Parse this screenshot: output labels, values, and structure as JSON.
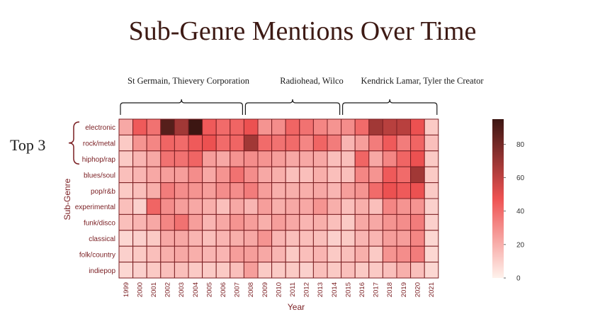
{
  "title": "Sub-Genre Mentions Over Time",
  "annotations": {
    "bracket1": "St Germain, Thievery Corporation",
    "bracket2": "Radiohead, Wilco",
    "bracket3": "Kendrick Lamar, Tyler the Creator",
    "top3": "Top 3"
  },
  "colors": {
    "low": "#fff2ec",
    "mid": "#ee5252",
    "high": "#3c1612",
    "grid": "#7a1e22",
    "text": "#7a1e22"
  },
  "chart_data": {
    "type": "heatmap",
    "title": "Sub-Genre Mentions Over Time",
    "xlabel": "Year",
    "ylabel": "Sub-Genre",
    "x": [
      "1999",
      "2000",
      "2001",
      "2002",
      "2003",
      "2004",
      "2005",
      "2006",
      "2007",
      "2008",
      "2009",
      "2010",
      "2011",
      "2012",
      "2013",
      "2014",
      "2015",
      "2016",
      "2017",
      "2018",
      "2019",
      "2020",
      "2021"
    ],
    "y": [
      "electronic",
      "rock/metal",
      "hiphop/rap",
      "blues/soul",
      "pop/r&b",
      "experimental",
      "funk/disco",
      "classical",
      "folk/country",
      "indiepop"
    ],
    "values": [
      [
        22,
        45,
        38,
        88,
        68,
        95,
        45,
        40,
        42,
        48,
        28,
        30,
        42,
        38,
        32,
        28,
        30,
        40,
        68,
        62,
        62,
        48,
        12
      ],
      [
        12,
        28,
        32,
        42,
        40,
        45,
        48,
        40,
        42,
        68,
        40,
        38,
        40,
        32,
        42,
        35,
        18,
        25,
        35,
        45,
        35,
        42,
        15
      ],
      [
        12,
        18,
        22,
        38,
        38,
        42,
        25,
        22,
        28,
        30,
        28,
        25,
        22,
        22,
        22,
        15,
        15,
        42,
        22,
        32,
        42,
        48,
        12
      ],
      [
        15,
        18,
        22,
        25,
        25,
        30,
        22,
        28,
        38,
        30,
        22,
        20,
        15,
        15,
        20,
        15,
        15,
        32,
        28,
        45,
        40,
        68,
        12
      ],
      [
        12,
        15,
        20,
        35,
        30,
        28,
        25,
        30,
        30,
        35,
        25,
        20,
        20,
        20,
        22,
        18,
        25,
        28,
        40,
        48,
        45,
        48,
        12
      ],
      [
        15,
        10,
        42,
        30,
        25,
        22,
        20,
        15,
        22,
        18,
        25,
        20,
        22,
        22,
        28,
        20,
        15,
        20,
        15,
        32,
        28,
        28,
        10
      ],
      [
        15,
        18,
        22,
        32,
        38,
        25,
        18,
        22,
        28,
        25,
        20,
        25,
        22,
        18,
        20,
        15,
        12,
        22,
        22,
        28,
        30,
        35,
        10
      ],
      [
        8,
        10,
        12,
        22,
        22,
        18,
        15,
        18,
        20,
        22,
        28,
        18,
        15,
        15,
        15,
        10,
        12,
        18,
        18,
        25,
        25,
        32,
        8
      ],
      [
        10,
        12,
        15,
        20,
        22,
        20,
        18,
        18,
        25,
        25,
        22,
        18,
        12,
        15,
        18,
        12,
        15,
        20,
        12,
        28,
        30,
        35,
        8
      ],
      [
        8,
        10,
        12,
        15,
        15,
        12,
        12,
        12,
        15,
        25,
        12,
        12,
        12,
        10,
        15,
        12,
        15,
        12,
        12,
        15,
        20,
        15,
        8
      ]
    ],
    "colorbar": {
      "min": 0,
      "max": 95,
      "ticks": [
        0,
        20,
        40,
        60,
        80
      ]
    },
    "legend_placement": "right"
  }
}
